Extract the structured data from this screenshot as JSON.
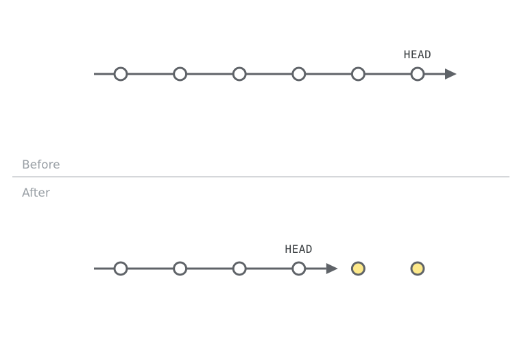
{
  "labels": {
    "before": "Before",
    "after": "After"
  },
  "before": {
    "head_label": "HEAD",
    "commits": 6,
    "head_index": 5
  },
  "after": {
    "head_label": "HEAD",
    "commits": 4,
    "head_index": 3,
    "discarded_commits": 2
  },
  "colors": {
    "line": "#5f6368",
    "commit_fill": "#ffffff",
    "discarded_fill": "#fde98a",
    "section_label": "#9aa0a6",
    "divider": "#d5d7da"
  }
}
